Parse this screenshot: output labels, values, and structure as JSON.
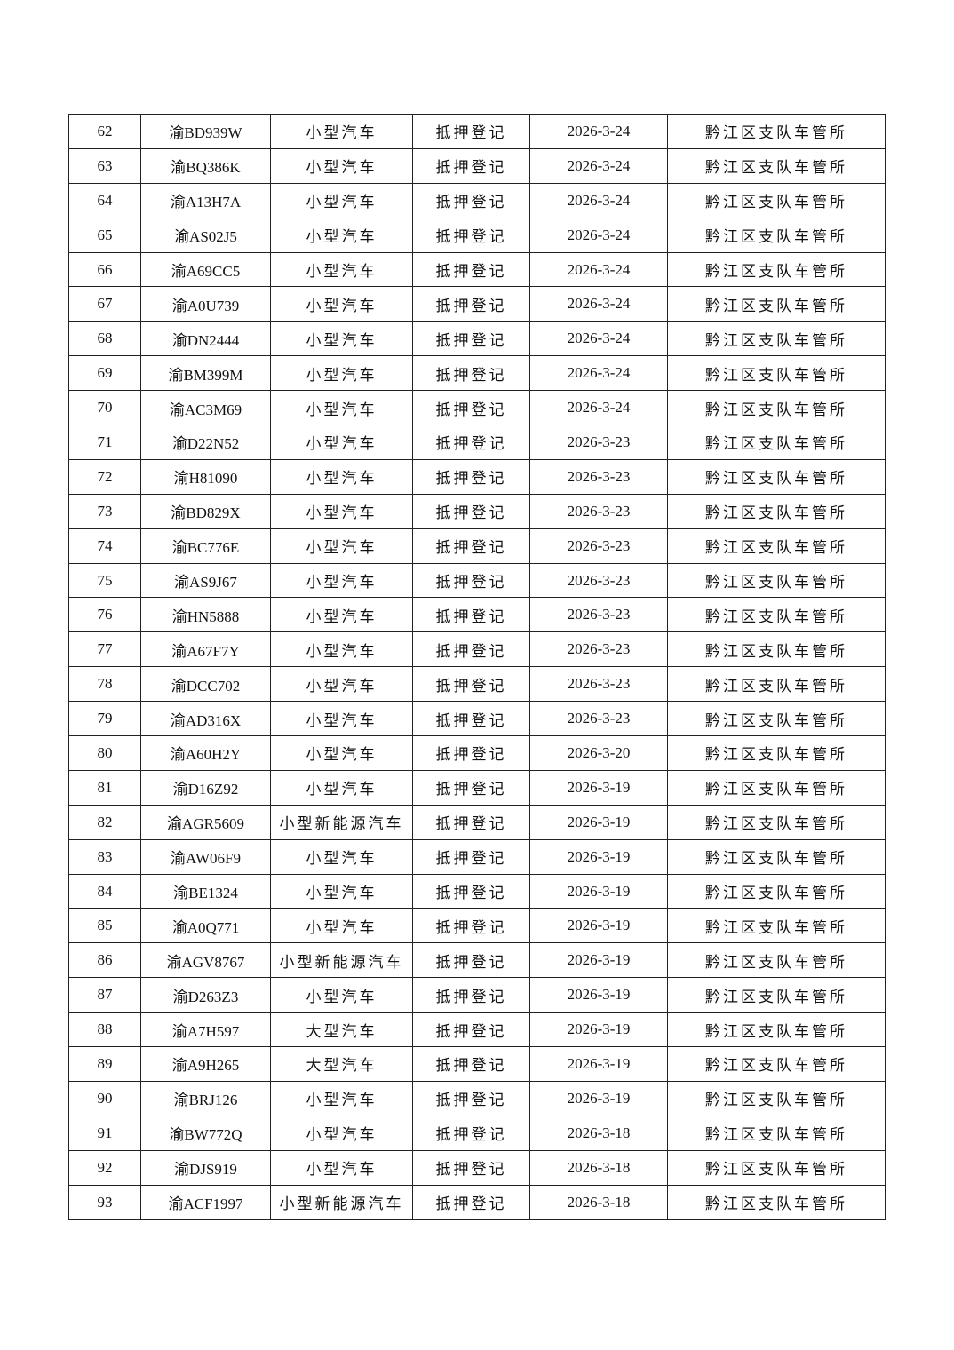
{
  "table": {
    "rows": [
      [
        "62",
        "渝BD939W",
        "小型汽车",
        "抵押登记",
        "2026-3-24",
        "黔江区支队车管所"
      ],
      [
        "63",
        "渝BQ386K",
        "小型汽车",
        "抵押登记",
        "2026-3-24",
        "黔江区支队车管所"
      ],
      [
        "64",
        "渝A13H7A",
        "小型汽车",
        "抵押登记",
        "2026-3-24",
        "黔江区支队车管所"
      ],
      [
        "65",
        "渝AS02J5",
        "小型汽车",
        "抵押登记",
        "2026-3-24",
        "黔江区支队车管所"
      ],
      [
        "66",
        "渝A69CC5",
        "小型汽车",
        "抵押登记",
        "2026-3-24",
        "黔江区支队车管所"
      ],
      [
        "67",
        "渝A0U739",
        "小型汽车",
        "抵押登记",
        "2026-3-24",
        "黔江区支队车管所"
      ],
      [
        "68",
        "渝DN2444",
        "小型汽车",
        "抵押登记",
        "2026-3-24",
        "黔江区支队车管所"
      ],
      [
        "69",
        "渝BM399M",
        "小型汽车",
        "抵押登记",
        "2026-3-24",
        "黔江区支队车管所"
      ],
      [
        "70",
        "渝AC3M69",
        "小型汽车",
        "抵押登记",
        "2026-3-24",
        "黔江区支队车管所"
      ],
      [
        "71",
        "渝D22N52",
        "小型汽车",
        "抵押登记",
        "2026-3-23",
        "黔江区支队车管所"
      ],
      [
        "72",
        "渝H81090",
        "小型汽车",
        "抵押登记",
        "2026-3-23",
        "黔江区支队车管所"
      ],
      [
        "73",
        "渝BD829X",
        "小型汽车",
        "抵押登记",
        "2026-3-23",
        "黔江区支队车管所"
      ],
      [
        "74",
        "渝BC776E",
        "小型汽车",
        "抵押登记",
        "2026-3-23",
        "黔江区支队车管所"
      ],
      [
        "75",
        "渝AS9J67",
        "小型汽车",
        "抵押登记",
        "2026-3-23",
        "黔江区支队车管所"
      ],
      [
        "76",
        "渝HN5888",
        "小型汽车",
        "抵押登记",
        "2026-3-23",
        "黔江区支队车管所"
      ],
      [
        "77",
        "渝A67F7Y",
        "小型汽车",
        "抵押登记",
        "2026-3-23",
        "黔江区支队车管所"
      ],
      [
        "78",
        "渝DCC702",
        "小型汽车",
        "抵押登记",
        "2026-3-23",
        "黔江区支队车管所"
      ],
      [
        "79",
        "渝AD316X",
        "小型汽车",
        "抵押登记",
        "2026-3-23",
        "黔江区支队车管所"
      ],
      [
        "80",
        "渝A60H2Y",
        "小型汽车",
        "抵押登记",
        "2026-3-20",
        "黔江区支队车管所"
      ],
      [
        "81",
        "渝D16Z92",
        "小型汽车",
        "抵押登记",
        "2026-3-19",
        "黔江区支队车管所"
      ],
      [
        "82",
        "渝AGR5609",
        "小型新能源汽车",
        "抵押登记",
        "2026-3-19",
        "黔江区支队车管所"
      ],
      [
        "83",
        "渝AW06F9",
        "小型汽车",
        "抵押登记",
        "2026-3-19",
        "黔江区支队车管所"
      ],
      [
        "84",
        "渝BE1324",
        "小型汽车",
        "抵押登记",
        "2026-3-19",
        "黔江区支队车管所"
      ],
      [
        "85",
        "渝A0Q771",
        "小型汽车",
        "抵押登记",
        "2026-3-19",
        "黔江区支队车管所"
      ],
      [
        "86",
        "渝AGV8767",
        "小型新能源汽车",
        "抵押登记",
        "2026-3-19",
        "黔江区支队车管所"
      ],
      [
        "87",
        "渝D263Z3",
        "小型汽车",
        "抵押登记",
        "2026-3-19",
        "黔江区支队车管所"
      ],
      [
        "88",
        "渝A7H597",
        "大型汽车",
        "抵押登记",
        "2026-3-19",
        "黔江区支队车管所"
      ],
      [
        "89",
        "渝A9H265",
        "大型汽车",
        "抵押登记",
        "2026-3-19",
        "黔江区支队车管所"
      ],
      [
        "90",
        "渝BRJ126",
        "小型汽车",
        "抵押登记",
        "2026-3-19",
        "黔江区支队车管所"
      ],
      [
        "91",
        "渝BW772Q",
        "小型汽车",
        "抵押登记",
        "2026-3-18",
        "黔江区支队车管所"
      ],
      [
        "92",
        "渝DJS919",
        "小型汽车",
        "抵押登记",
        "2026-3-18",
        "黔江区支队车管所"
      ],
      [
        "93",
        "渝ACF1997",
        "小型新能源汽车",
        "抵押登记",
        "2026-3-18",
        "黔江区支队车管所"
      ]
    ]
  }
}
